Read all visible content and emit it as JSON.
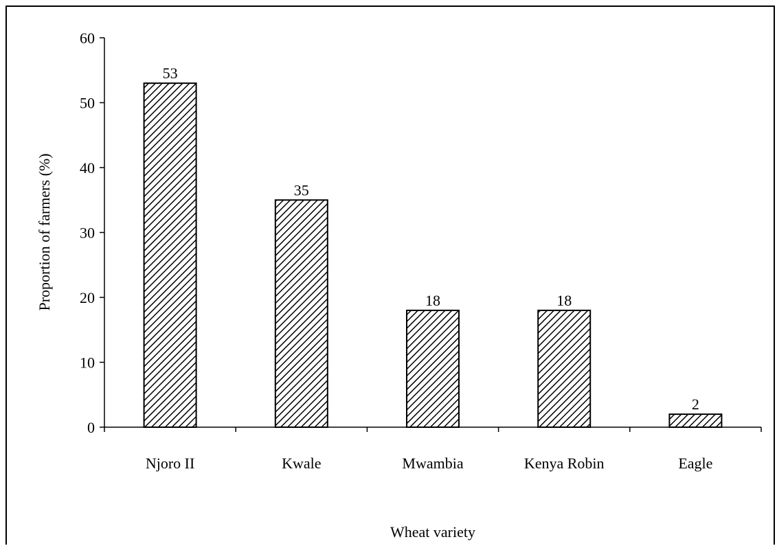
{
  "chart_data": {
    "type": "bar",
    "categories": [
      "Njoro II",
      "Kwale",
      "Mwambia",
      "Kenya Robin",
      "Eagle"
    ],
    "values": [
      53,
      35,
      18,
      18,
      2
    ],
    "data_labels": [
      "53",
      "35",
      "18",
      "18",
      "2"
    ],
    "title": "",
    "xlabel": "Wheat variety",
    "ylabel": "Proportion of farmers (%)",
    "ylim": [
      0,
      60
    ],
    "yticks": [
      0,
      10,
      20,
      30,
      40,
      50,
      60
    ],
    "ytick_labels": [
      "0",
      "10",
      "20",
      "30",
      "40",
      "50",
      "60"
    ],
    "grid": false,
    "legend": "none",
    "bar_fill": "diagonal-hatch",
    "colors": {
      "bar_stroke": "#000000",
      "hatch": "#000000",
      "background": "#ffffff"
    }
  }
}
